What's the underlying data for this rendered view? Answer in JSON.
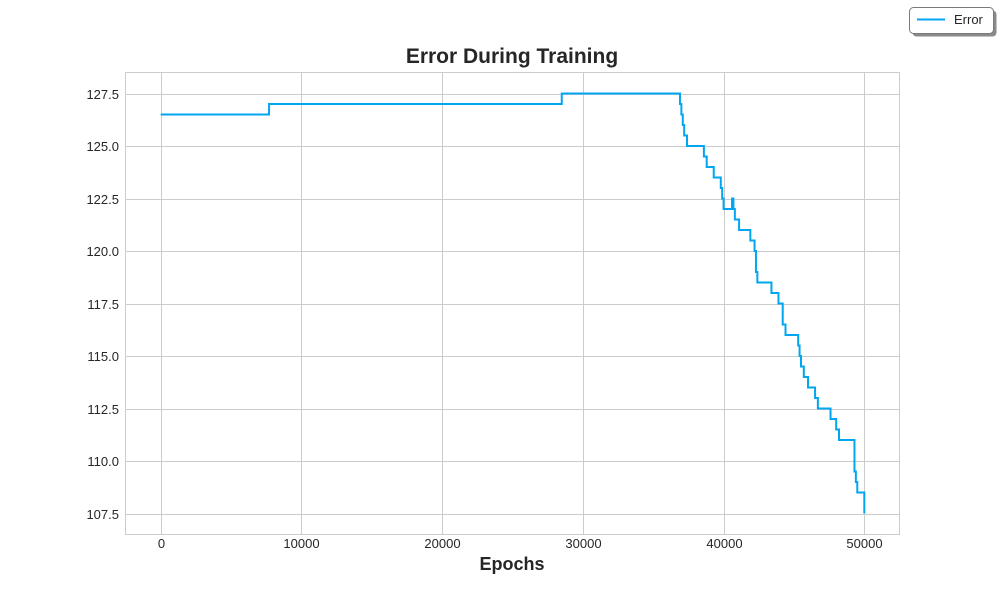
{
  "chart_data": {
    "type": "line",
    "title": "Error During Training",
    "xlabel": "Epochs",
    "ylabel": "",
    "xlim": [
      -2500,
      52500
    ],
    "ylim": [
      106.5,
      128.5
    ],
    "xticks": [
      0,
      10000,
      20000,
      30000,
      40000,
      50000
    ],
    "xtick_labels": [
      "0",
      "10000",
      "20000",
      "30000",
      "40000",
      "50000"
    ],
    "yticks": [
      107.5,
      110.0,
      112.5,
      115.0,
      117.5,
      120.0,
      122.5,
      125.0,
      127.5
    ],
    "ytick_labels": [
      "107.5",
      "110.0",
      "112.5",
      "115.0",
      "117.5",
      "120.0",
      "122.5",
      "125.0",
      "127.5"
    ],
    "grid": true,
    "legend_position": "outside-top-right",
    "series": [
      {
        "name": "Error",
        "color": "#00a6f0",
        "step": true,
        "x": [
          0,
          7700,
          7700,
          28500,
          28500,
          36900,
          36900,
          37000,
          37000,
          37100,
          37100,
          37200,
          37200,
          37400,
          37400,
          38600,
          38600,
          38700,
          38700,
          38800,
          38800,
          39300,
          39300,
          39800,
          39800,
          39900,
          39900,
          40000,
          40000,
          40600,
          40600,
          40700,
          40700,
          40800,
          40800,
          41100,
          41100,
          41900,
          41900,
          42200,
          42200,
          42300,
          42300,
          42400,
          42400,
          43400,
          43400,
          43900,
          43900,
          44200,
          44200,
          44400,
          44400,
          45300,
          45300,
          45400,
          45400,
          45500,
          45500,
          45700,
          45700,
          46000,
          46000,
          46500,
          46500,
          46700,
          46700,
          47600,
          47600,
          48000,
          48000,
          48200,
          48200,
          49300,
          49300,
          49400,
          49400,
          49500,
          49500,
          50000,
          50000
        ],
        "y": [
          126.5,
          126.5,
          127.0,
          127.0,
          127.5,
          127.5,
          127.0,
          127.0,
          126.5,
          126.5,
          126.0,
          126.0,
          125.5,
          125.5,
          125.0,
          125.0,
          124.5,
          124.5,
          124.5,
          124.5,
          124.0,
          124.0,
          123.5,
          123.5,
          123.0,
          123.0,
          122.5,
          122.5,
          122.0,
          122.0,
          122.5,
          122.5,
          122.0,
          122.0,
          121.5,
          121.5,
          121.0,
          121.0,
          120.5,
          120.5,
          120.0,
          120.0,
          119.0,
          119.0,
          118.5,
          118.5,
          118.0,
          118.0,
          117.5,
          117.5,
          116.5,
          116.5,
          116.0,
          116.0,
          115.5,
          115.5,
          115.0,
          115.0,
          114.5,
          114.5,
          114.0,
          114.0,
          113.5,
          113.5,
          113.0,
          113.0,
          112.5,
          112.5,
          112.0,
          112.0,
          111.5,
          111.5,
          111.0,
          111.0,
          109.5,
          109.5,
          109.0,
          109.0,
          108.5,
          108.5,
          107.5
        ]
      }
    ]
  }
}
